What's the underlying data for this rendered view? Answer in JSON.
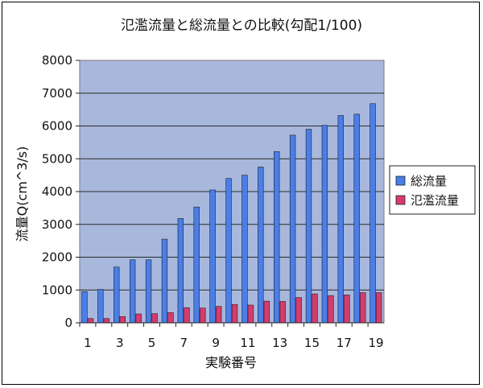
{
  "chart_data": {
    "type": "bar",
    "title": "氾濫流量と総流量との比較(勾配1/100)",
    "xlabel": "実験番号",
    "ylabel": "流量Q(cm^3/s)",
    "ylim": [
      0,
      8000
    ],
    "yticks": [
      0,
      1000,
      2000,
      3000,
      4000,
      5000,
      6000,
      7000,
      8000
    ],
    "categories": [
      1,
      2,
      3,
      4,
      5,
      6,
      7,
      8,
      9,
      10,
      11,
      12,
      13,
      14,
      15,
      16,
      17,
      18,
      19
    ],
    "xtick_labels": [
      "1",
      "3",
      "5",
      "7",
      "9",
      "11",
      "13",
      "15",
      "17",
      "19"
    ],
    "grid": true,
    "legend_position": "right",
    "plot_background": "#a8b8dc",
    "series": [
      {
        "name": "総流量",
        "color": "#4a7ee8",
        "values": [
          950,
          1020,
          1700,
          1920,
          1920,
          2550,
          3180,
          3530,
          4050,
          4400,
          4500,
          4750,
          5220,
          5720,
          5900,
          6020,
          6320,
          6360,
          6680
        ]
      },
      {
        "name": "氾濫流量",
        "color": "#d83a6e",
        "values": [
          130,
          130,
          190,
          270,
          280,
          310,
          460,
          450,
          500,
          560,
          540,
          660,
          650,
          770,
          880,
          830,
          850,
          920,
          920
        ]
      }
    ]
  }
}
